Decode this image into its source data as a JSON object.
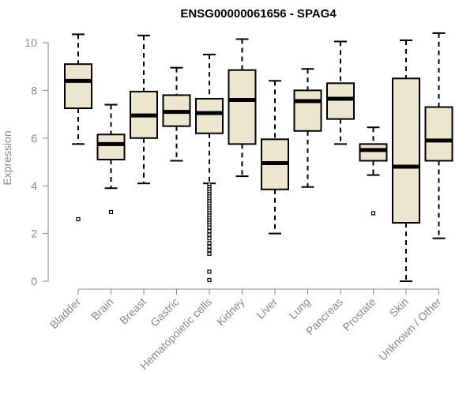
{
  "chart_data": {
    "type": "boxplot",
    "title": "ENSG00000061656 - SPAG4",
    "xlabel": "",
    "ylabel": "Expression",
    "ylim": [
      0,
      10.4
    ],
    "yticks": [
      0,
      2,
      4,
      6,
      8,
      10
    ],
    "box_fill": "#ede6cf",
    "categories": [
      "Bladder",
      "Brain",
      "Breast",
      "Gastric",
      "Hematopoietic cells",
      "Kidney",
      "Liver",
      "Lung",
      "Pancreas",
      "Prostate",
      "Skin",
      "Unknown / Other"
    ],
    "boxes": [
      {
        "name": "Bladder",
        "min": 5.75,
        "q1": 7.25,
        "median": 8.4,
        "q3": 9.1,
        "max": 10.35,
        "outliers": [
          2.6
        ]
      },
      {
        "name": "Brain",
        "min": 3.9,
        "q1": 5.1,
        "median": 5.75,
        "q3": 6.15,
        "max": 7.4,
        "outliers": [
          2.9
        ]
      },
      {
        "name": "Breast",
        "min": 4.1,
        "q1": 6.0,
        "median": 6.95,
        "q3": 7.95,
        "max": 10.3,
        "outliers": []
      },
      {
        "name": "Gastric",
        "min": 5.05,
        "q1": 6.5,
        "median": 7.1,
        "q3": 7.8,
        "max": 8.95,
        "outliers": []
      },
      {
        "name": "Hematopoietic cells",
        "min": 4.1,
        "q1": 6.2,
        "median": 7.05,
        "q3": 7.65,
        "max": 9.5,
        "outliers": [
          4.05,
          3.95,
          3.85,
          3.75,
          3.65,
          3.55,
          3.45,
          3.35,
          3.25,
          3.15,
          3.05,
          2.95,
          2.85,
          2.75,
          2.65,
          2.55,
          2.45,
          2.35,
          2.25,
          2.1,
          1.95,
          1.8,
          1.6,
          1.45,
          1.3,
          1.15,
          0.4,
          0.05
        ]
      },
      {
        "name": "Kidney",
        "min": 4.4,
        "q1": 5.75,
        "median": 7.6,
        "q3": 8.85,
        "max": 10.15,
        "outliers": []
      },
      {
        "name": "Liver",
        "min": 2.0,
        "q1": 3.85,
        "median": 4.95,
        "q3": 5.95,
        "max": 8.4,
        "outliers": []
      },
      {
        "name": "Lung",
        "min": 3.95,
        "q1": 6.3,
        "median": 7.55,
        "q3": 8.0,
        "max": 8.9,
        "outliers": []
      },
      {
        "name": "Pancreas",
        "min": 5.75,
        "q1": 6.8,
        "median": 7.65,
        "q3": 8.3,
        "max": 10.05,
        "outliers": []
      },
      {
        "name": "Prostate",
        "min": 4.45,
        "q1": 5.05,
        "median": 5.5,
        "q3": 5.75,
        "max": 6.45,
        "outliers": [
          2.85
        ]
      },
      {
        "name": "Skin",
        "min": 0.0,
        "q1": 2.45,
        "median": 4.8,
        "q3": 8.5,
        "max": 10.1,
        "outliers": []
      },
      {
        "name": "Unknown / Other",
        "min": 1.8,
        "q1": 5.05,
        "median": 5.9,
        "q3": 7.3,
        "max": 10.4,
        "outliers": []
      }
    ]
  }
}
